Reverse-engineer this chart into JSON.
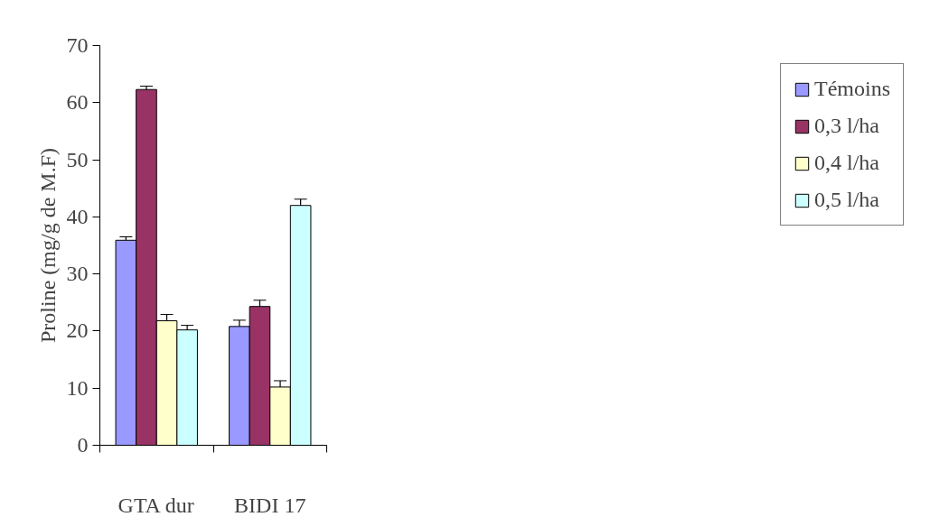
{
  "chart_data": {
    "type": "bar",
    "ylabel": "Proline (mg/g de M.F)",
    "categories": [
      "GTA dur",
      "BIDI 17"
    ],
    "series": [
      {
        "name": "Témoins",
        "color": "#9999ff",
        "values": [
          35.9,
          20.8
        ],
        "errors": [
          0.6,
          1.1
        ]
      },
      {
        "name": "0,3 l/ha",
        "color": "#993366",
        "values": [
          62.3,
          24.3
        ],
        "errors": [
          0.6,
          1.1
        ]
      },
      {
        "name": "0,4 l/ha",
        "color": "#ffffcc",
        "values": [
          21.8,
          10.2
        ],
        "errors": [
          1.1,
          1.1
        ]
      },
      {
        "name": "0,5 l/ha",
        "color": "#ccffff",
        "values": [
          20.2,
          42.0
        ],
        "errors": [
          0.8,
          1.1
        ]
      }
    ],
    "ylim": [
      0,
      70
    ],
    "yticks": [
      0,
      10,
      20,
      30,
      40,
      50,
      60,
      70
    ],
    "grid": false,
    "legend": "right"
  }
}
